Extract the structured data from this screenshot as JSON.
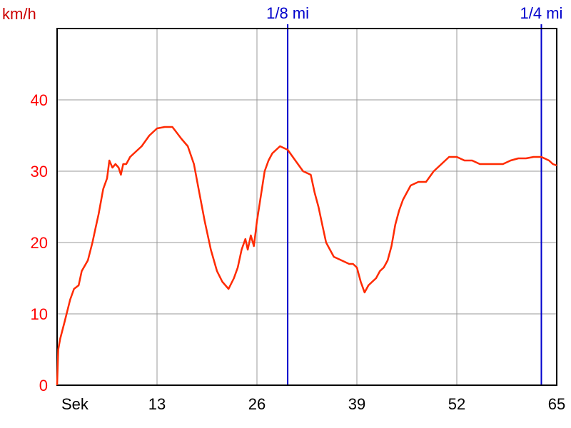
{
  "chart_data": {
    "type": "line",
    "ylabel": "km/h",
    "xlabel": "Sek",
    "ylim": [
      0,
      50
    ],
    "xlim": [
      0,
      65
    ],
    "x_ticks": [
      {
        "value": 0,
        "label": "Sek"
      },
      {
        "value": 13,
        "label": "13"
      },
      {
        "value": 26,
        "label": "26"
      },
      {
        "value": 39,
        "label": "39"
      },
      {
        "value": 52,
        "label": "52"
      },
      {
        "value": 65,
        "label": "65"
      }
    ],
    "y_ticks": [
      0,
      10,
      20,
      30,
      40
    ],
    "grid": true,
    "markers": [
      {
        "x": 30,
        "label": "1/8 mi"
      },
      {
        "x": 63,
        "label": "1/4 mi"
      }
    ],
    "series": [
      {
        "color": "#ff2a00",
        "points": [
          [
            0,
            0
          ],
          [
            0.15,
            5
          ],
          [
            0.4,
            6.5
          ],
          [
            1,
            9
          ],
          [
            1.7,
            12
          ],
          [
            2.2,
            13.5
          ],
          [
            2.8,
            14
          ],
          [
            3.2,
            16
          ],
          [
            4,
            17.5
          ],
          [
            4.6,
            20
          ],
          [
            5,
            22
          ],
          [
            5.4,
            24
          ],
          [
            6,
            27.5
          ],
          [
            6.5,
            29
          ],
          [
            6.8,
            31.5
          ],
          [
            7.2,
            30.5
          ],
          [
            7.6,
            31
          ],
          [
            8,
            30.5
          ],
          [
            8.3,
            29.5
          ],
          [
            8.6,
            31
          ],
          [
            9,
            31
          ],
          [
            9.5,
            32
          ],
          [
            10,
            32.5
          ],
          [
            11,
            33.5
          ],
          [
            12,
            35
          ],
          [
            13,
            36
          ],
          [
            14,
            36.2
          ],
          [
            15,
            36.2
          ],
          [
            15.5,
            35.5
          ],
          [
            16.2,
            34.5
          ],
          [
            17,
            33.5
          ],
          [
            17.8,
            31
          ],
          [
            18.5,
            27
          ],
          [
            19.2,
            23
          ],
          [
            20,
            19
          ],
          [
            20.8,
            16
          ],
          [
            21.5,
            14.5
          ],
          [
            22.3,
            13.5
          ],
          [
            23,
            15
          ],
          [
            23.5,
            16.5
          ],
          [
            24,
            19
          ],
          [
            24.5,
            20.5
          ],
          [
            24.8,
            19
          ],
          [
            25.2,
            21
          ],
          [
            25.6,
            19.5
          ],
          [
            26,
            23
          ],
          [
            26.5,
            26.5
          ],
          [
            27,
            30
          ],
          [
            27.5,
            31.5
          ],
          [
            28,
            32.5
          ],
          [
            28.5,
            33
          ],
          [
            29,
            33.5
          ],
          [
            30,
            33
          ],
          [
            31,
            31.5
          ],
          [
            32,
            30
          ],
          [
            33,
            29.5
          ],
          [
            33.5,
            27
          ],
          [
            34,
            25
          ],
          [
            34.5,
            22.5
          ],
          [
            35,
            20
          ],
          [
            36,
            18
          ],
          [
            37,
            17.5
          ],
          [
            38,
            17
          ],
          [
            38.5,
            17
          ],
          [
            39,
            16.5
          ],
          [
            39.5,
            14.5
          ],
          [
            40,
            13
          ],
          [
            40.5,
            14
          ],
          [
            41,
            14.5
          ],
          [
            41.5,
            15
          ],
          [
            42,
            16
          ],
          [
            42.5,
            16.5
          ],
          [
            43,
            17.5
          ],
          [
            43.5,
            19.5
          ],
          [
            44,
            22.5
          ],
          [
            44.5,
            24.5
          ],
          [
            45,
            26
          ],
          [
            46,
            28
          ],
          [
            47,
            28.5
          ],
          [
            48,
            28.5
          ],
          [
            49,
            30
          ],
          [
            50,
            31
          ],
          [
            51,
            32
          ],
          [
            52,
            32
          ],
          [
            53,
            31.5
          ],
          [
            54,
            31.5
          ],
          [
            55,
            31
          ],
          [
            56,
            31
          ],
          [
            57,
            31
          ],
          [
            58,
            31
          ],
          [
            59,
            31.5
          ],
          [
            60,
            31.8
          ],
          [
            61,
            31.8
          ],
          [
            62,
            32
          ],
          [
            63,
            32
          ],
          [
            64,
            31.5
          ],
          [
            64.5,
            31
          ],
          [
            65,
            30.8
          ]
        ]
      }
    ]
  }
}
